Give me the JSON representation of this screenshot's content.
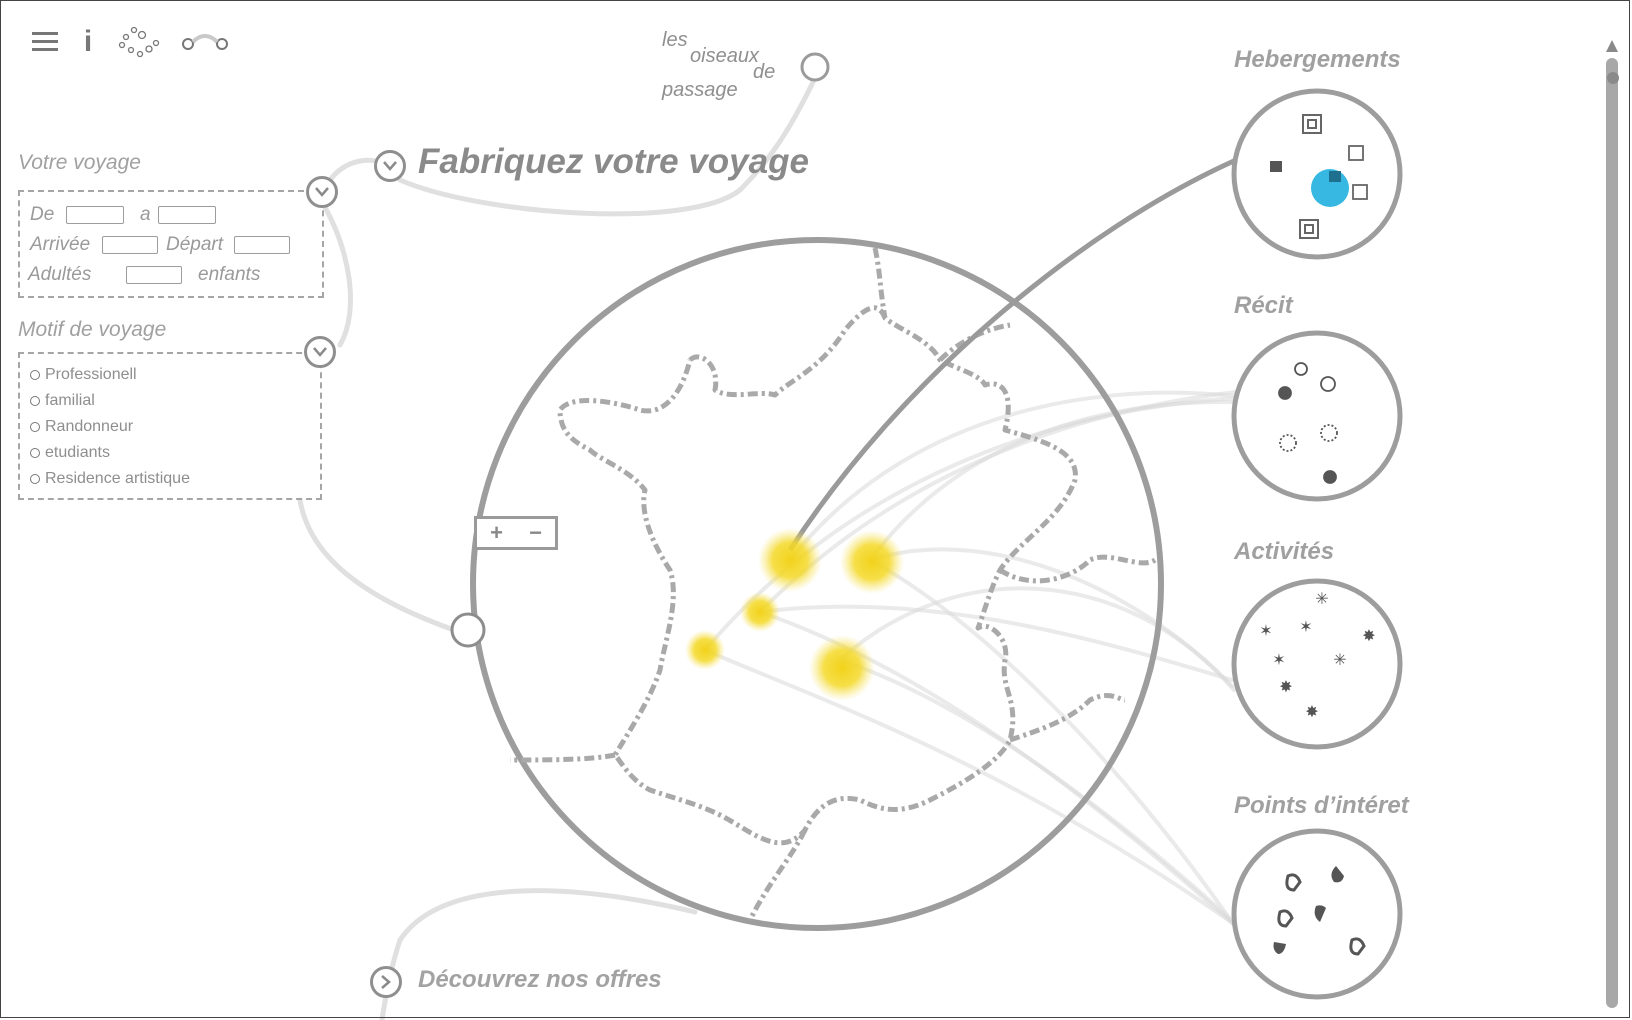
{
  "toolbar": {
    "icons": [
      "menu-icon",
      "info-icon",
      "constellation-icon",
      "link-icon"
    ],
    "info_glyph": "i"
  },
  "brand": {
    "line1": "les",
    "line2": "oiseaux",
    "line3": "de",
    "line4": "passage"
  },
  "page_title": "Fabriquez votre voyage",
  "voyage": {
    "section_label": "Votre voyage",
    "de_label": "De",
    "a_label": "a",
    "arrivee_label": "Arrivée",
    "depart_label": "Départ",
    "adultes_label": "Adultés",
    "enfants_label": "enfants",
    "de_value": "",
    "a_value": "",
    "arrivee_value": "",
    "depart_value": "",
    "adultes_value": ""
  },
  "motif": {
    "section_label": "Motif de voyage",
    "options": [
      "Professionell",
      "familial",
      "Randonneur",
      "etudiants",
      "Residence artistique"
    ]
  },
  "map": {
    "zoom_in": "+",
    "zoom_out": "−",
    "highlight_color": "#f2d21b"
  },
  "offers_label": "Découvrez nos offres",
  "categories": {
    "hebergements": "Hebergements",
    "recit": "Récit",
    "activites": "Activités",
    "points": "Points d’intéret"
  },
  "colors": {
    "accent": "#2bb4e0",
    "line": "#9b9b9b",
    "dot": "#f2d21b"
  }
}
